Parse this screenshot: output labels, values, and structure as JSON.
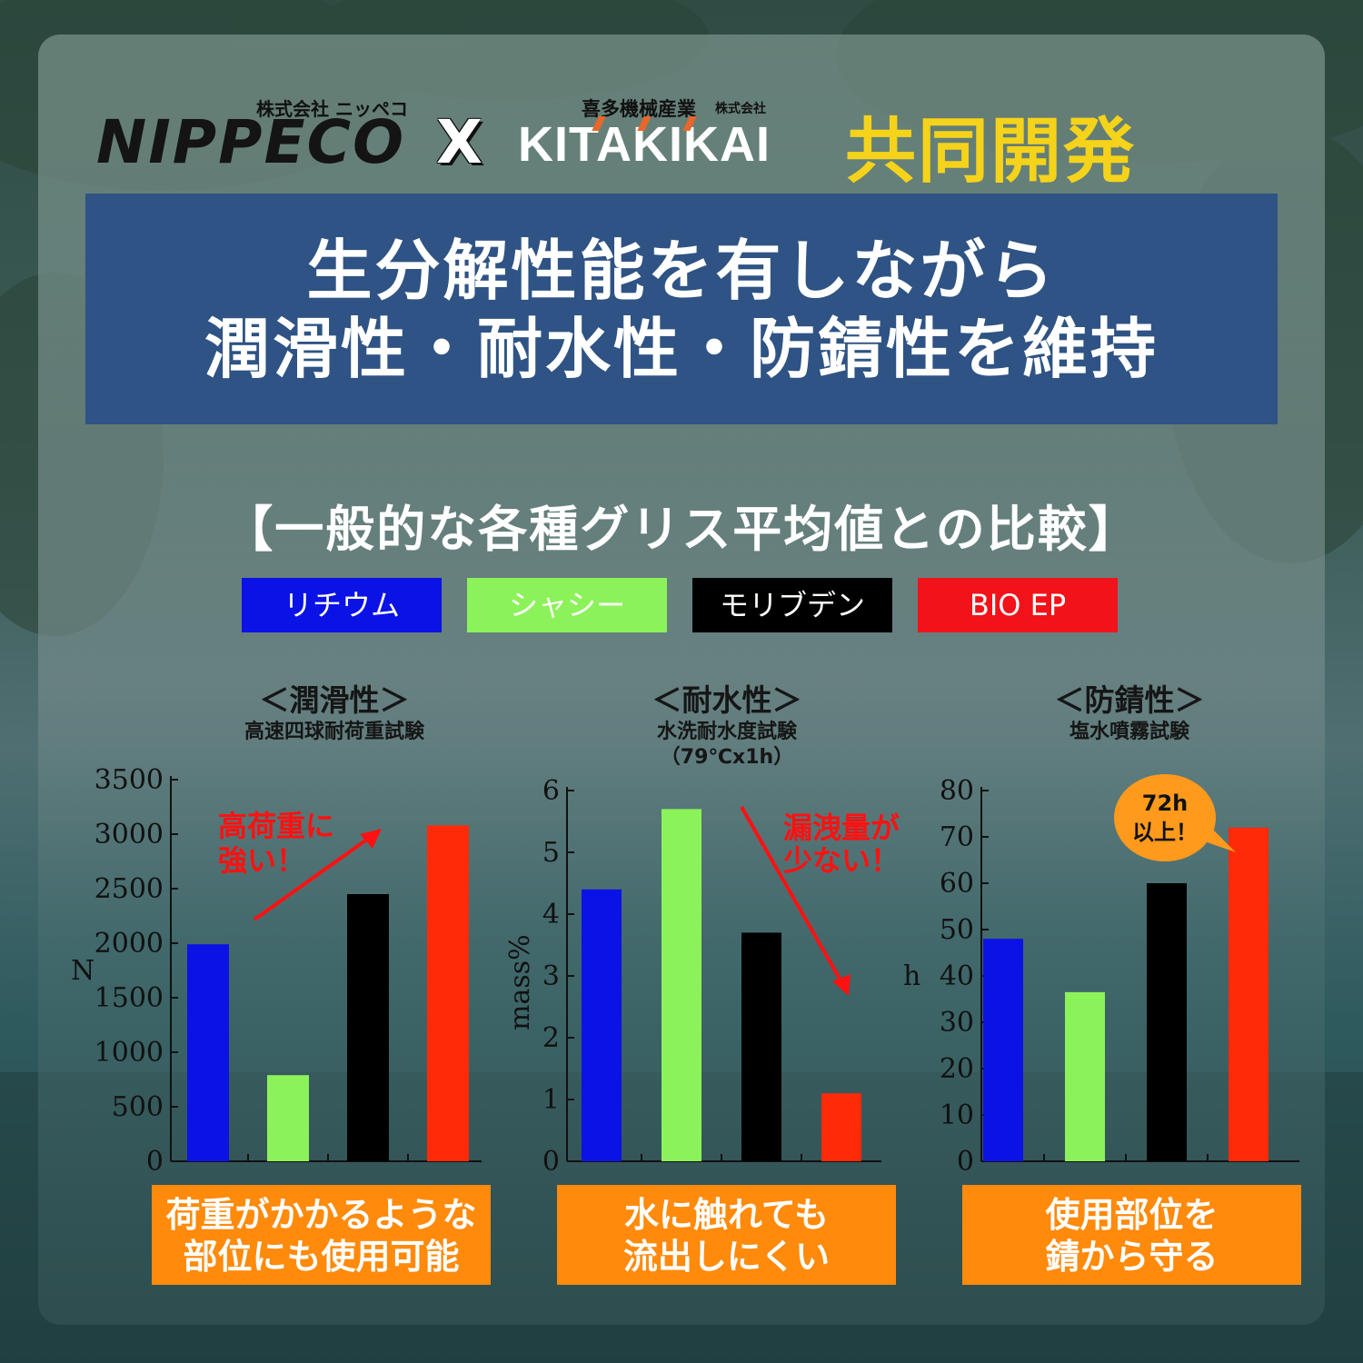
{
  "logos": {
    "nippeco_sub": "株式会社 ニッペコ",
    "nippeco": "NIPPECO",
    "cross": "X",
    "kitakikai_sub1": "喜多機械産業",
    "kitakikai_sub2": "株式会社",
    "kitakikai": "KITAKIKAI",
    "kyodo": "共同開発"
  },
  "headline": {
    "line1": "生分解性能を有しながら",
    "line2": "潤滑性・耐水性・防錆性を維持"
  },
  "compare_title": "【一般的な各種グリス平均値との比較】",
  "legend": [
    {
      "label": "リチウム",
      "color": "#0b12e6"
    },
    {
      "label": "シャシー",
      "color": "#8cf25a"
    },
    {
      "label": "モリブデン",
      "color": "#000000"
    },
    {
      "label": "BIO EP",
      "color": "#f2121a"
    }
  ],
  "colors": {
    "accent": "#ff8a0c",
    "headline_bg": "#2e5384",
    "kyodo": "#f5d31a",
    "annotation": "#ff1111"
  },
  "charts": [
    {
      "title": "＜潤滑性＞",
      "subtitle": "高速四球耐荷重試験",
      "subtitle2": "",
      "annotation_l1": "高荷重に",
      "annotation_l2": "強い！",
      "conclusion_l1": "荷重がかかるような",
      "conclusion_l2": "部位にも使用可能"
    },
    {
      "title": "＜耐水性＞",
      "subtitle": "水洗耐水度試験",
      "subtitle2": "（79℃x1h）",
      "annotation_l1": "漏洩量が",
      "annotation_l2": "少ない！",
      "conclusion_l1": "水に触れても",
      "conclusion_l2": "流出しにくい"
    },
    {
      "title": "＜防錆性＞",
      "subtitle": "塩水噴霧試験",
      "subtitle2": "",
      "annotation_l1": "72h",
      "annotation_l2": "以上！",
      "conclusion_l1": "使用部位を",
      "conclusion_l2": "錆から守る"
    }
  ],
  "chart_data": [
    {
      "type": "bar",
      "title": "＜潤滑性＞",
      "ylabel": "N",
      "ylim": [
        0,
        3500
      ],
      "yticks": [
        0,
        500,
        1000,
        1500,
        2000,
        2500,
        3000,
        3500
      ],
      "categories": [
        "リチウム",
        "シャシー",
        "モリブデン",
        "BIO EP"
      ],
      "values": [
        1990,
        790,
        2450,
        3080
      ],
      "colors": [
        "#0b12e6",
        "#8cf25a",
        "#000000",
        "#ff2a08"
      ]
    },
    {
      "type": "bar",
      "title": "＜耐水性＞",
      "ylabel": "mass%",
      "ylim": [
        0,
        6
      ],
      "yticks": [
        0,
        1,
        2,
        3,
        4,
        5,
        6
      ],
      "categories": [
        "リチウム",
        "シャシー",
        "モリブデン",
        "BIO EP"
      ],
      "values": [
        4.4,
        5.7,
        3.7,
        1.1
      ],
      "colors": [
        "#0b12e6",
        "#8cf25a",
        "#000000",
        "#ff2a08"
      ]
    },
    {
      "type": "bar",
      "title": "＜防錆性＞",
      "ylabel": "h",
      "ylim": [
        0,
        80
      ],
      "yticks": [
        0,
        10,
        20,
        30,
        40,
        50,
        60,
        70,
        80
      ],
      "categories": [
        "リチウム",
        "シャシー",
        "モリブデン",
        "BIO EP"
      ],
      "values": [
        48,
        36.5,
        60,
        72
      ],
      "colors": [
        "#0b12e6",
        "#8cf25a",
        "#000000",
        "#ff2a08"
      ]
    }
  ]
}
